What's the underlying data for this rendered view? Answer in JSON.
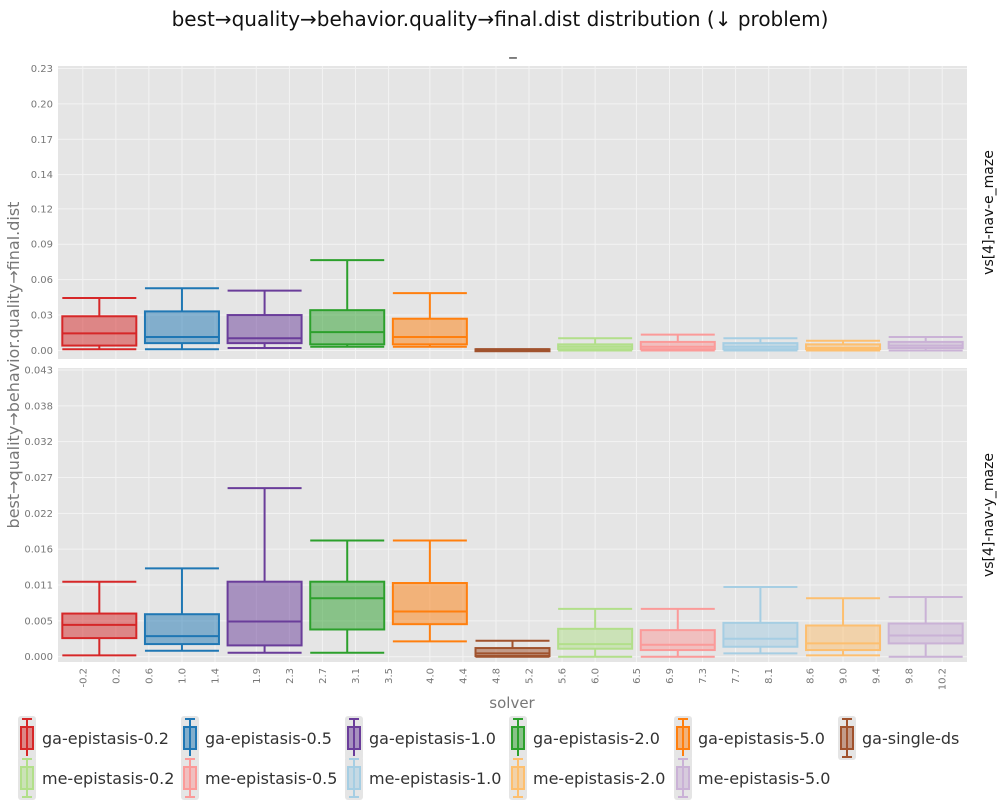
{
  "chart_data": {
    "type": "box",
    "title": "best→quality→behavior.quality→final.dist distribution (↓ problem)",
    "subtitle": "_",
    "xlabel": "solver",
    "ylabel": "best→quality→behavior.quality→final.dist",
    "x_ticks": [
      "-0.2",
      "0.2",
      "0.6",
      "1.0",
      "1.4",
      "1.9",
      "2.3",
      "2.7",
      "3.1",
      "3.5",
      "4.0",
      "4.4",
      "4.8",
      "5.2",
      "5.6",
      "6.0",
      "6.5",
      "6.9",
      "7.3",
      "7.7",
      "8.1",
      "8.6",
      "9.0",
      "9.4",
      "9.8",
      "10.2"
    ],
    "xlim": [
      -0.5,
      10.5
    ],
    "grid": true,
    "legend_position": "bottom",
    "legend": [
      "ga-epistasis-0.2",
      "ga-epistasis-0.5",
      "ga-epistasis-1.0",
      "ga-epistasis-2.0",
      "ga-epistasis-5.0",
      "ga-single-ds",
      "me-epistasis-0.2",
      "me-epistasis-0.5",
      "me-epistasis-1.0",
      "me-epistasis-2.0",
      "me-epistasis-5.0"
    ],
    "series_colors": [
      "#d62728",
      "#1f77b4",
      "#6a3d9a",
      "#2ca02c",
      "#ff7f0e",
      "#a0522d",
      "#b2df8a",
      "#fb9a99",
      "#a6cee3",
      "#fdbf6f",
      "#cab2d6"
    ],
    "facets": [
      {
        "label": "vs[4]-nav-e_maze",
        "ylim": [
          -0.007,
          0.233
        ],
        "y_ticks": [
          "0.00",
          "0.03",
          "0.06",
          "0.09",
          "0.12",
          "0.14",
          "0.17",
          "0.20",
          "0.23"
        ],
        "y_tick_values": [
          0,
          0.029,
          0.058,
          0.087,
          0.116,
          0.144,
          0.173,
          0.202,
          0.231
        ],
        "boxes": [
          {
            "series": "ga-epistasis-0.2",
            "low": 0.001,
            "q1": 0.004,
            "median": 0.014,
            "q3": 0.028,
            "high": 0.043
          },
          {
            "series": "ga-epistasis-0.5",
            "low": 0.001,
            "q1": 0.006,
            "median": 0.011,
            "q3": 0.032,
            "high": 0.051
          },
          {
            "series": "ga-epistasis-1.0",
            "low": 0.002,
            "q1": 0.006,
            "median": 0.01,
            "q3": 0.029,
            "high": 0.049
          },
          {
            "series": "ga-epistasis-2.0",
            "low": 0.003,
            "q1": 0.005,
            "median": 0.015,
            "q3": 0.033,
            "high": 0.074
          },
          {
            "series": "ga-epistasis-5.0",
            "low": 0.003,
            "q1": 0.005,
            "median": 0.011,
            "q3": 0.026,
            "high": 0.047
          },
          {
            "series": "ga-single-ds",
            "low": 0.0,
            "q1": 0.0,
            "median": 0.0005,
            "q3": 0.001,
            "high": 0.001
          },
          {
            "series": "me-epistasis-0.2",
            "low": 0.0,
            "q1": 0.001,
            "median": 0.003,
            "q3": 0.005,
            "high": 0.01
          },
          {
            "series": "me-epistasis-0.5",
            "low": 0.0,
            "q1": 0.001,
            "median": 0.003,
            "q3": 0.007,
            "high": 0.013
          },
          {
            "series": "me-epistasis-1.0",
            "low": 0.0,
            "q1": 0.001,
            "median": 0.003,
            "q3": 0.006,
            "high": 0.01
          },
          {
            "series": "me-epistasis-2.0",
            "low": 0.0,
            "q1": 0.001,
            "median": 0.002,
            "q3": 0.005,
            "high": 0.008
          },
          {
            "series": "me-epistasis-5.0",
            "low": 0.0,
            "q1": 0.002,
            "median": 0.004,
            "q3": 0.007,
            "high": 0.011
          }
        ]
      },
      {
        "label": "vs[4]-nav-y_maze",
        "ylim": [
          -0.0008,
          0.0435
        ],
        "y_ticks": [
          "0.000",
          "0.005",
          "0.011",
          "0.016",
          "0.022",
          "0.027",
          "0.032",
          "0.038",
          "0.043"
        ],
        "y_tick_values": [
          0,
          0.0054,
          0.0108,
          0.0162,
          0.0216,
          0.027,
          0.0324,
          0.0378,
          0.0432
        ],
        "boxes": [
          {
            "series": "ga-epistasis-0.2",
            "low": 0.0002,
            "q1": 0.0028,
            "median": 0.0048,
            "q3": 0.0065,
            "high": 0.0113
          },
          {
            "series": "ga-epistasis-0.5",
            "low": 0.0009,
            "q1": 0.0019,
            "median": 0.0031,
            "q3": 0.0064,
            "high": 0.0133
          },
          {
            "series": "ga-epistasis-1.0",
            "low": 0.0006,
            "q1": 0.0017,
            "median": 0.0053,
            "q3": 0.0113,
            "high": 0.0254
          },
          {
            "series": "ga-epistasis-2.0",
            "low": 0.0006,
            "q1": 0.0041,
            "median": 0.0088,
            "q3": 0.0113,
            "high": 0.0175
          },
          {
            "series": "ga-epistasis-5.0",
            "low": 0.0023,
            "q1": 0.0049,
            "median": 0.0068,
            "q3": 0.0111,
            "high": 0.0175
          },
          {
            "series": "ga-single-ds",
            "low": 0.0,
            "q1": 0.0001,
            "median": 0.0005,
            "q3": 0.0013,
            "high": 0.0024
          },
          {
            "series": "me-epistasis-0.2",
            "low": 0.0,
            "q1": 0.0012,
            "median": 0.0019,
            "q3": 0.0042,
            "high": 0.0072
          },
          {
            "series": "me-epistasis-0.5",
            "low": 0.0,
            "q1": 0.001,
            "median": 0.0018,
            "q3": 0.004,
            "high": 0.0072
          },
          {
            "series": "me-epistasis-1.0",
            "low": 0.0005,
            "q1": 0.0015,
            "median": 0.0027,
            "q3": 0.0051,
            "high": 0.0105
          },
          {
            "series": "me-epistasis-2.0",
            "low": 0.0002,
            "q1": 0.001,
            "median": 0.002,
            "q3": 0.0047,
            "high": 0.0088
          },
          {
            "series": "me-epistasis-5.0",
            "low": 0.0,
            "q1": 0.002,
            "median": 0.0032,
            "q3": 0.005,
            "high": 0.009
          }
        ]
      }
    ]
  }
}
